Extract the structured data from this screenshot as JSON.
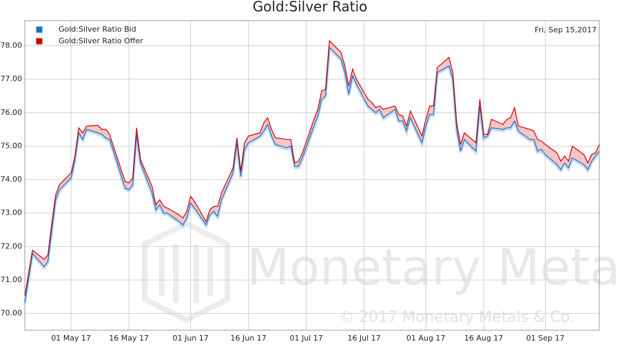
{
  "chart_data": {
    "type": "line",
    "title": "Gold:Silver Ratio",
    "date_label": "Fri, Sep 15,2017",
    "watermark": {
      "brand": "Monetary Metals",
      "copyright": "© 2017 Monetary Metals & Co."
    },
    "legend": "upper left",
    "grid": true,
    "xlim": [
      "2017-04-19",
      "2017-09-15"
    ],
    "xticks": [
      {
        "value": "2017-05-01",
        "label": "01 May 17"
      },
      {
        "value": "2017-05-16",
        "label": "16 May 17"
      },
      {
        "value": "2017-06-01",
        "label": "01 Jun 17"
      },
      {
        "value": "2017-06-16",
        "label": "16 Jun 17"
      },
      {
        "value": "2017-07-01",
        "label": "01 Jul 17"
      },
      {
        "value": "2017-07-16",
        "label": "16 Jul 17"
      },
      {
        "value": "2017-08-01",
        "label": "01 Aug 17"
      },
      {
        "value": "2017-08-16",
        "label": "16 Aug 17"
      },
      {
        "value": "2017-09-01",
        "label": "01 Sep 17"
      }
    ],
    "ylim": [
      69.5,
      78.75
    ],
    "yticks": [
      {
        "value": 70,
        "label": "70.00"
      },
      {
        "value": 71,
        "label": "71.00"
      },
      {
        "value": 72,
        "label": "72.00"
      },
      {
        "value": 73,
        "label": "73.00"
      },
      {
        "value": 74,
        "label": "74.00"
      },
      {
        "value": 75,
        "label": "75.00"
      },
      {
        "value": 76,
        "label": "76.00"
      },
      {
        "value": 77,
        "label": "77.00"
      },
      {
        "value": 78,
        "label": "78.00"
      }
    ],
    "x": [
      "2017-04-19",
      "2017-04-21",
      "2017-04-24",
      "2017-04-25",
      "2017-04-26",
      "2017-04-27",
      "2017-04-28",
      "2017-05-01",
      "2017-05-02",
      "2017-05-03",
      "2017-05-04",
      "2017-05-05",
      "2017-05-08",
      "2017-05-09",
      "2017-05-10",
      "2017-05-11",
      "2017-05-12",
      "2017-05-15",
      "2017-05-16",
      "2017-05-17",
      "2017-05-18",
      "2017-05-19",
      "2017-05-22",
      "2017-05-23",
      "2017-05-24",
      "2017-05-25",
      "2017-05-26",
      "2017-05-29",
      "2017-05-30",
      "2017-05-31",
      "2017-06-01",
      "2017-06-02",
      "2017-06-05",
      "2017-06-06",
      "2017-06-07",
      "2017-06-08",
      "2017-06-09",
      "2017-06-12",
      "2017-06-13",
      "2017-06-14",
      "2017-06-15",
      "2017-06-16",
      "2017-06-19",
      "2017-06-20",
      "2017-06-21",
      "2017-06-22",
      "2017-06-23",
      "2017-06-26",
      "2017-06-27",
      "2017-06-28",
      "2017-06-29",
      "2017-06-30",
      "2017-07-03",
      "2017-07-04",
      "2017-07-05",
      "2017-07-06",
      "2017-07-07",
      "2017-07-10",
      "2017-07-11",
      "2017-07-12",
      "2017-07-13",
      "2017-07-14",
      "2017-07-17",
      "2017-07-18",
      "2017-07-19",
      "2017-07-20",
      "2017-07-21",
      "2017-07-24",
      "2017-07-25",
      "2017-07-26",
      "2017-07-27",
      "2017-07-28",
      "2017-07-31",
      "2017-08-01",
      "2017-08-02",
      "2017-08-03",
      "2017-08-04",
      "2017-08-07",
      "2017-08-08",
      "2017-08-09",
      "2017-08-10",
      "2017-08-11",
      "2017-08-14",
      "2017-08-15",
      "2017-08-16",
      "2017-08-17",
      "2017-08-18",
      "2017-08-21",
      "2017-08-22",
      "2017-08-23",
      "2017-08-24",
      "2017-08-25",
      "2017-08-28",
      "2017-08-29",
      "2017-08-30",
      "2017-08-31",
      "2017-09-01",
      "2017-09-04",
      "2017-09-05",
      "2017-09-06",
      "2017-09-07",
      "2017-09-08",
      "2017-09-11",
      "2017-09-12",
      "2017-09-13",
      "2017-09-14",
      "2017-09-15"
    ],
    "series": [
      {
        "name": "Gold:Silver Ratio Bid",
        "color": "#1f6fc0",
        "values": [
          70.33,
          71.8,
          71.4,
          71.55,
          72.5,
          73.4,
          73.7,
          74.05,
          74.6,
          75.4,
          75.2,
          75.5,
          75.4,
          75.35,
          75.25,
          75.2,
          74.85,
          73.75,
          73.7,
          73.85,
          75.35,
          74.5,
          73.6,
          73.1,
          73.25,
          73.0,
          73.0,
          72.75,
          72.65,
          72.85,
          73.3,
          73.15,
          72.65,
          72.95,
          73.05,
          72.9,
          73.4,
          74.2,
          75.1,
          74.1,
          74.9,
          75.1,
          75.3,
          75.45,
          75.65,
          75.3,
          75.05,
          74.95,
          75.0,
          74.4,
          74.4,
          74.65,
          75.6,
          75.9,
          76.4,
          76.5,
          77.95,
          77.6,
          77.2,
          76.55,
          77.1,
          76.85,
          76.2,
          76.1,
          76.0,
          76.1,
          75.85,
          76.1,
          75.75,
          75.75,
          75.45,
          75.85,
          75.1,
          75.6,
          75.95,
          75.95,
          77.2,
          77.4,
          77.0,
          75.5,
          74.85,
          75.2,
          74.85,
          76.2,
          75.25,
          75.3,
          75.55,
          75.5,
          75.55,
          75.55,
          75.75,
          75.45,
          75.2,
          75.2,
          74.85,
          74.9,
          74.75,
          74.45,
          74.3,
          74.5,
          74.35,
          74.65,
          74.45,
          74.3,
          74.55,
          74.7,
          74.85
        ]
      },
      {
        "name": "Gold:Silver Ratio Offer",
        "color": "#cc0000",
        "values": [
          70.53,
          71.89,
          71.62,
          71.75,
          72.7,
          73.55,
          73.85,
          74.2,
          74.7,
          75.55,
          75.4,
          75.6,
          75.62,
          75.5,
          75.5,
          75.35,
          75.0,
          73.95,
          73.9,
          74.05,
          75.55,
          74.6,
          73.8,
          73.25,
          73.4,
          73.2,
          73.15,
          72.95,
          72.85,
          73.05,
          73.5,
          73.35,
          72.75,
          73.1,
          73.2,
          73.2,
          73.6,
          74.35,
          75.25,
          74.25,
          75.1,
          75.3,
          75.4,
          75.7,
          75.85,
          75.5,
          75.25,
          75.2,
          75.2,
          74.5,
          74.55,
          74.8,
          75.8,
          76.1,
          76.65,
          76.7,
          78.15,
          77.8,
          77.4,
          76.8,
          77.3,
          77.0,
          76.4,
          76.3,
          76.15,
          76.2,
          76.1,
          76.2,
          75.95,
          75.9,
          75.6,
          76.05,
          75.3,
          75.8,
          76.2,
          76.2,
          77.35,
          77.65,
          77.2,
          75.7,
          75.05,
          75.4,
          75.1,
          76.4,
          75.35,
          75.35,
          75.8,
          75.65,
          75.8,
          75.85,
          76.15,
          75.6,
          75.5,
          75.45,
          75.2,
          75.15,
          75.05,
          74.8,
          74.55,
          74.7,
          74.55,
          75.0,
          74.75,
          74.5,
          74.75,
          74.8,
          75.05
        ]
      }
    ]
  }
}
